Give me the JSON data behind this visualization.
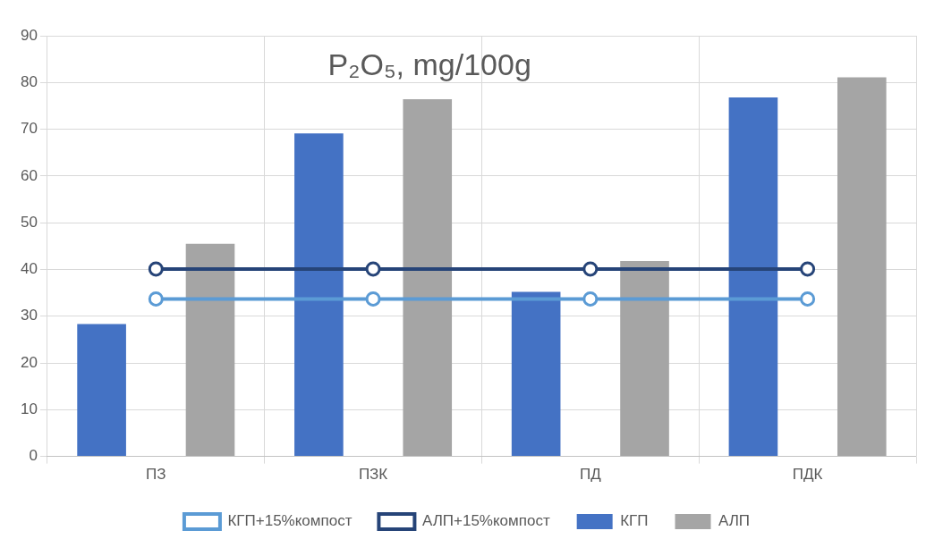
{
  "chart_data": {
    "type": "bar",
    "title": "P₂O₅, mg/100g",
    "categories": [
      "ПЗ",
      "ПЗК",
      "ПД",
      "ПДК"
    ],
    "series": [
      {
        "name": "КГП",
        "color": "#4472c4",
        "values": [
          28.3,
          69.1,
          35.2,
          76.8
        ]
      },
      {
        "name": "АЛП",
        "color": "#a5a5a5",
        "values": [
          45.5,
          76.4,
          41.8,
          81.1
        ]
      },
      {
        "name": "КГП+15%компост",
        "type": "line",
        "color": "#5b9bd5",
        "values": [
          33.7,
          33.7,
          33.7,
          33.7
        ]
      },
      {
        "name": "АЛП+15%компост",
        "type": "line",
        "color": "#264478",
        "values": [
          40.1,
          40.1,
          40.1,
          40.1
        ]
      }
    ],
    "ylim": [
      0,
      90
    ],
    "yticks": [
      0,
      10,
      20,
      30,
      40,
      50,
      60,
      70,
      80,
      90
    ],
    "grid": true,
    "legend": "bottom",
    "marker": "circle"
  }
}
